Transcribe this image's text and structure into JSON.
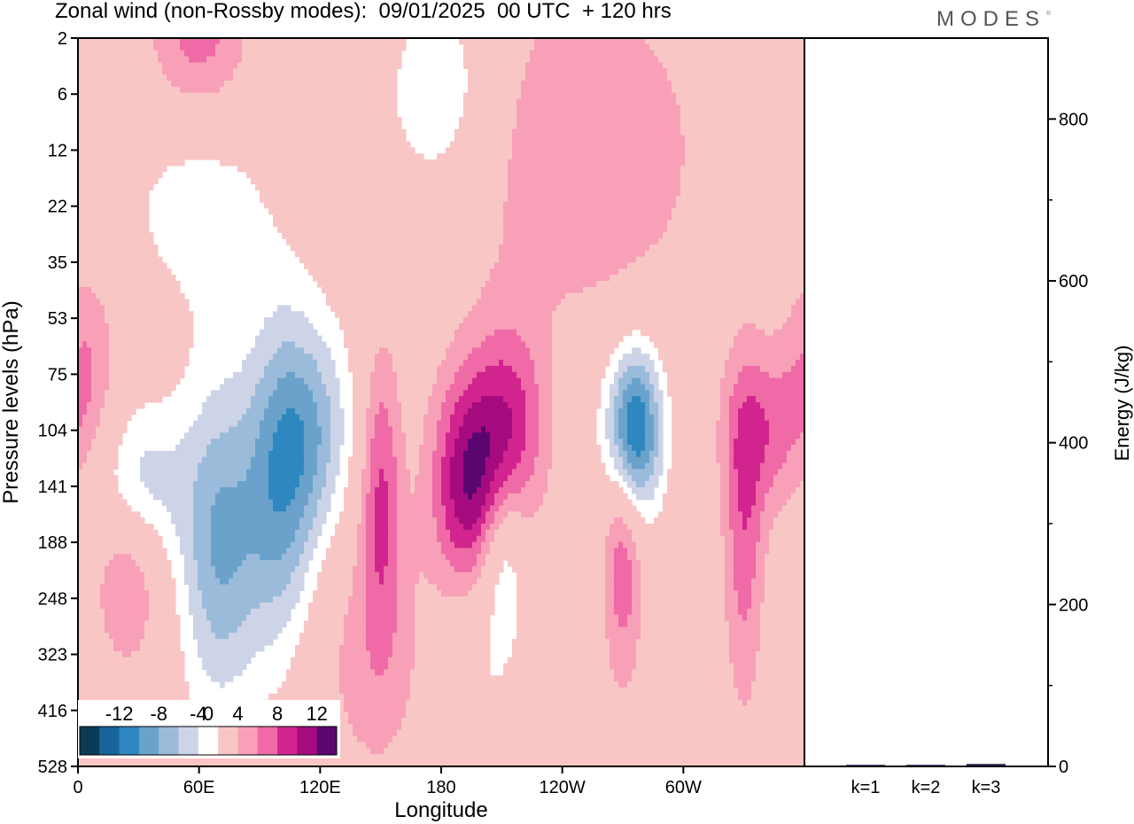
{
  "title": "Zonal wind (non-Rossby modes):  09/01/2025  00 UTC  + 120 hrs",
  "logo": "MODES",
  "logo_mark": "®",
  "chart_data": [
    {
      "type": "heatmap",
      "variable": "Zonal wind (non-Rossby modes)",
      "xlabel": "Longitude",
      "ylabel": "Pressure levels (hPa)",
      "x_ticks": [
        "0",
        "60E",
        "120E",
        "180",
        "120W",
        "60W"
      ],
      "x_tick_values": [
        0,
        60,
        120,
        180,
        240,
        300
      ],
      "x_range": [
        0,
        360
      ],
      "y_ticks": [
        "2",
        "6",
        "12",
        "22",
        "35",
        "53",
        "75",
        "104",
        "141",
        "188",
        "248",
        "323",
        "416",
        "528"
      ],
      "colorbar": {
        "labels": [
          "-12",
          "-8",
          "-4",
          "0",
          "4",
          "8",
          "12"
        ],
        "levels": [
          -14,
          -12,
          -10,
          -8,
          -6,
          -4,
          -2,
          2,
          4,
          6,
          8,
          10,
          12,
          14
        ],
        "colors": [
          "#0d3b55",
          "#17659a",
          "#2f87c0",
          "#6aa2cc",
          "#9bbbdb",
          "#ced4e7",
          "#ffffff",
          "#f9c6c6",
          "#f7a0b8",
          "#ef6aa6",
          "#d2248e",
          "#a50b7f",
          "#5a0670"
        ]
      },
      "features": [
        {
          "lon": 28,
          "level": "141",
          "value": -8,
          "sx": 22,
          "sy": 1.5
        },
        {
          "lon": 70,
          "level": "188",
          "value": -8,
          "sx": 20,
          "sy": 3
        },
        {
          "lon": 100,
          "level": "141",
          "value": -8,
          "sx": 18,
          "sy": 3
        },
        {
          "lon": 118,
          "level": "104",
          "value": -6,
          "sx": 20,
          "sy": 2
        },
        {
          "lon": 150,
          "level": "141",
          "value": 6,
          "sx": 10,
          "sy": 2.5
        },
        {
          "lon": 195,
          "level": "141",
          "value": 11,
          "sx": 20,
          "sy": 2
        },
        {
          "lon": 215,
          "level": "104",
          "value": 6,
          "sx": 18,
          "sy": 2
        },
        {
          "lon": 210,
          "level": "188",
          "value": -6,
          "sx": 12,
          "sy": 1.6
        },
        {
          "lon": 275,
          "level": "104",
          "value": -14,
          "sx": 14,
          "sy": 1.5
        },
        {
          "lon": 270,
          "level": "188",
          "value": 6,
          "sx": 10,
          "sy": 2.5
        },
        {
          "lon": 330,
          "level": "188",
          "value": 5,
          "sx": 10,
          "sy": 3
        },
        {
          "lon": 340,
          "level": "104",
          "value": 5,
          "sx": 20,
          "sy": 1.5
        },
        {
          "lon": 25,
          "level": "188",
          "value": 6,
          "sx": 18,
          "sy": 2
        },
        {
          "lon": 60,
          "level": "2",
          "value": 5,
          "sx": 25,
          "sy": 1.5
        },
        {
          "lon": 250,
          "level": "12",
          "value": 4,
          "sx": 60,
          "sy": 3
        },
        {
          "lon": 180,
          "level": "6",
          "value": -4,
          "sx": 30,
          "sy": 2
        },
        {
          "lon": 190,
          "level": "323",
          "value": -4,
          "sx": 30,
          "sy": 3
        },
        {
          "lon": 160,
          "level": "323",
          "value": 4,
          "sx": 40,
          "sy": 2.5
        },
        {
          "lon": 5,
          "level": "75",
          "value": 4,
          "sx": 15,
          "sy": 2
        },
        {
          "lon": 60,
          "level": "22",
          "value": -3,
          "sx": 40,
          "sy": 2
        }
      ]
    },
    {
      "type": "bar",
      "categories": [
        "k=1",
        "k=2",
        "k=3"
      ],
      "values": [
        2,
        2,
        3
      ],
      "ylabel": "Energy (J/kg)",
      "y_ticks": [
        "0",
        "200",
        "400",
        "600",
        "800"
      ],
      "ylim": [
        0,
        900
      ]
    }
  ]
}
